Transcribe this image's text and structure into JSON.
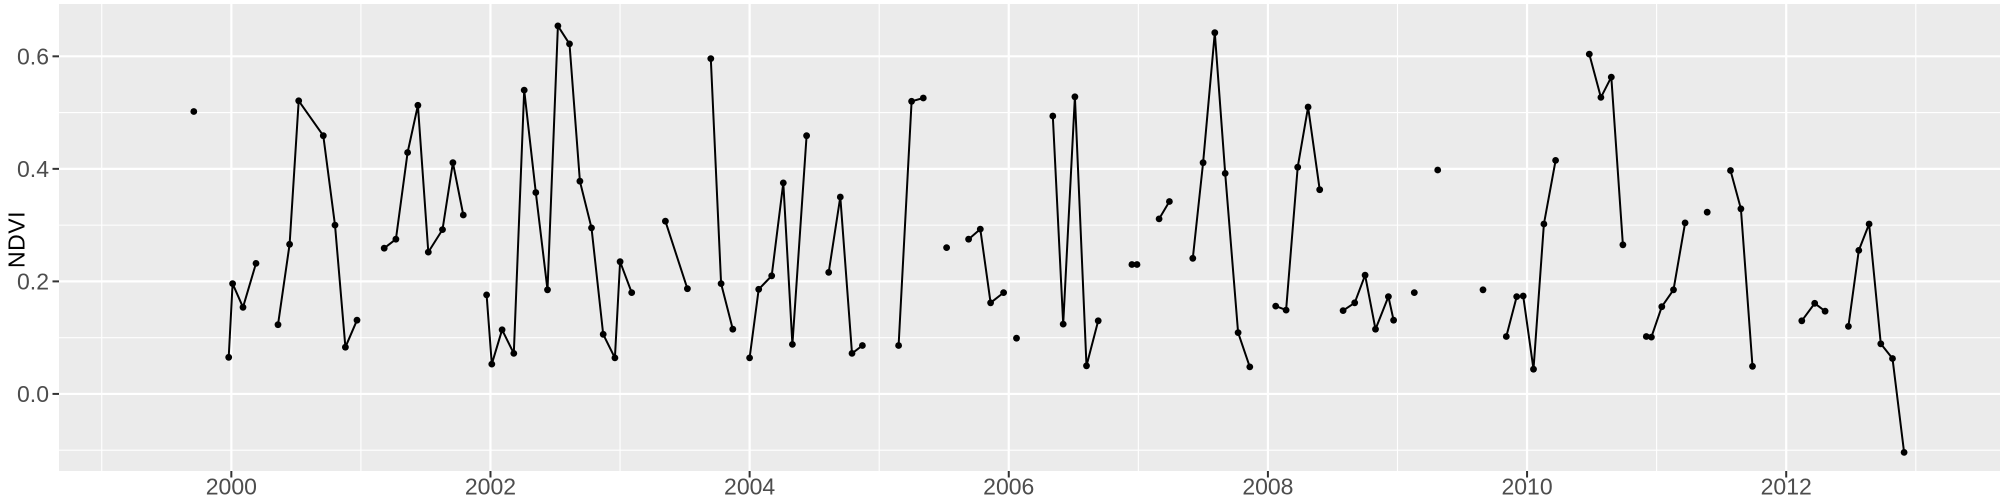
{
  "page": {
    "background": "#FFFFFF"
  },
  "chart_data": {
    "type": "line",
    "title": "",
    "subtitle": "",
    "xlabel": "",
    "ylabel": "NDVI",
    "legend": "none",
    "grid": "on",
    "style": "ggplot2-grey-theme, black points connected by line segments with seasonal gaps",
    "panel_background": "#EBEBEB",
    "gridline_color": "#FFFFFF",
    "line_color": "#000000",
    "point_color": "#000000",
    "tick_label_color": "#4D4D4D",
    "tick_mark_color": "#333333",
    "axis_title_color": "#000000",
    "x_range": [
      1998.67,
      2013.65
    ],
    "y_range": [
      -0.137,
      0.693
    ],
    "x_major_ticks": [
      2000,
      2002,
      2004,
      2006,
      2008,
      2010,
      2012
    ],
    "x_tick_labels": [
      "2000",
      "2002",
      "2004",
      "2006",
      "2008",
      "2010",
      "2012"
    ],
    "x_minor_ticks": [
      1999,
      2001,
      2003,
      2005,
      2007,
      2009,
      2011,
      2013
    ],
    "y_major_ticks": [
      0.0,
      0.2,
      0.4,
      0.6
    ],
    "y_tick_labels": [
      "0.0",
      "0.2",
      "0.4",
      "0.6"
    ],
    "y_minor_ticks": [
      -0.1,
      0.1,
      0.3,
      0.5
    ],
    "series_name": "NDVI",
    "segments": [
      [
        [
          1999.71,
          0.502
        ]
      ],
      [
        [
          1999.98,
          0.065
        ],
        [
          2000.01,
          0.196
        ],
        [
          2000.09,
          0.154
        ],
        [
          2000.19,
          0.232
        ]
      ],
      [
        [
          2000.36,
          0.123
        ],
        [
          2000.45,
          0.266
        ],
        [
          2000.52,
          0.521
        ],
        [
          2000.71,
          0.459
        ],
        [
          2000.8,
          0.3
        ],
        [
          2000.88,
          0.083
        ],
        [
          2000.97,
          0.131
        ]
      ],
      [
        [
          2001.18,
          0.259
        ],
        [
          2001.27,
          0.275
        ],
        [
          2001.36,
          0.429
        ],
        [
          2001.44,
          0.513
        ],
        [
          2001.52,
          0.252
        ],
        [
          2001.63,
          0.292
        ],
        [
          2001.71,
          0.411
        ],
        [
          2001.79,
          0.318
        ]
      ],
      [
        [
          2001.97,
          0.176
        ],
        [
          2002.01,
          0.053
        ],
        [
          2002.09,
          0.114
        ],
        [
          2002.18,
          0.072
        ],
        [
          2002.26,
          0.54
        ],
        [
          2002.35,
          0.358
        ],
        [
          2002.44,
          0.185
        ],
        [
          2002.52,
          0.654
        ],
        [
          2002.61,
          0.622
        ],
        [
          2002.69,
          0.378
        ],
        [
          2002.78,
          0.295
        ],
        [
          2002.87,
          0.106
        ],
        [
          2002.96,
          0.064
        ],
        [
          2003.0,
          0.235
        ],
        [
          2003.09,
          0.18
        ]
      ],
      [
        [
          2003.35,
          0.307
        ],
        [
          2003.52,
          0.187
        ]
      ],
      [
        [
          2003.7,
          0.596
        ],
        [
          2003.78,
          0.196
        ],
        [
          2003.87,
          0.115
        ]
      ],
      [
        [
          2004.0,
          0.064
        ],
        [
          2004.07,
          0.186
        ],
        [
          2004.17,
          0.21
        ],
        [
          2004.26,
          0.375
        ],
        [
          2004.33,
          0.088
        ],
        [
          2004.44,
          0.459
        ]
      ],
      [
        [
          2004.61,
          0.216
        ],
        [
          2004.7,
          0.35
        ],
        [
          2004.79,
          0.072
        ],
        [
          2004.87,
          0.086
        ]
      ],
      [
        [
          2005.15,
          0.086
        ],
        [
          2005.25,
          0.52
        ],
        [
          2005.34,
          0.526
        ]
      ],
      [
        [
          2005.52,
          0.26
        ]
      ],
      [
        [
          2005.69,
          0.275
        ],
        [
          2005.78,
          0.293
        ],
        [
          2005.86,
          0.162
        ],
        [
          2005.96,
          0.18
        ]
      ],
      [
        [
          2006.06,
          0.099
        ]
      ],
      [
        [
          2006.34,
          0.494
        ],
        [
          2006.42,
          0.124
        ],
        [
          2006.51,
          0.528
        ],
        [
          2006.6,
          0.05
        ],
        [
          2006.69,
          0.13
        ]
      ],
      [
        [
          2006.95,
          0.23
        ],
        [
          2006.99,
          0.23
        ]
      ],
      [
        [
          2007.16,
          0.311
        ],
        [
          2007.24,
          0.342
        ]
      ],
      [
        [
          2007.42,
          0.241
        ],
        [
          2007.5,
          0.411
        ],
        [
          2007.59,
          0.642
        ],
        [
          2007.67,
          0.392
        ],
        [
          2007.77,
          0.109
        ],
        [
          2007.86,
          0.048
        ]
      ],
      [
        [
          2008.06,
          0.156
        ],
        [
          2008.14,
          0.149
        ],
        [
          2008.23,
          0.403
        ],
        [
          2008.31,
          0.51
        ],
        [
          2008.4,
          0.363
        ]
      ],
      [
        [
          2008.58,
          0.148
        ],
        [
          2008.67,
          0.162
        ],
        [
          2008.75,
          0.211
        ],
        [
          2008.83,
          0.115
        ],
        [
          2008.93,
          0.173
        ],
        [
          2008.97,
          0.131
        ]
      ],
      [
        [
          2009.13,
          0.18
        ]
      ],
      [
        [
          2009.31,
          0.398
        ]
      ],
      [
        [
          2009.66,
          0.185
        ]
      ],
      [
        [
          2009.84,
          0.102
        ],
        [
          2009.92,
          0.173
        ],
        [
          2009.97,
          0.174
        ],
        [
          2010.05,
          0.044
        ],
        [
          2010.13,
          0.302
        ],
        [
          2010.22,
          0.415
        ]
      ],
      [
        [
          2010.48,
          0.604
        ],
        [
          2010.57,
          0.527
        ],
        [
          2010.65,
          0.563
        ],
        [
          2010.74,
          0.265
        ]
      ],
      [
        [
          2010.92,
          0.102
        ],
        [
          2010.96,
          0.101
        ],
        [
          2011.04,
          0.155
        ],
        [
          2011.13,
          0.185
        ],
        [
          2011.22,
          0.304
        ]
      ],
      [
        [
          2011.39,
          0.323
        ]
      ],
      [
        [
          2011.57,
          0.397
        ],
        [
          2011.65,
          0.329
        ],
        [
          2011.74,
          0.049
        ]
      ],
      [
        [
          2012.12,
          0.13
        ],
        [
          2012.22,
          0.161
        ],
        [
          2012.3,
          0.147
        ]
      ],
      [
        [
          2012.48,
          0.12
        ],
        [
          2012.56,
          0.255
        ],
        [
          2012.64,
          0.302
        ],
        [
          2012.73,
          0.089
        ],
        [
          2012.82,
          0.063
        ],
        [
          2012.91,
          -0.104
        ]
      ]
    ]
  }
}
